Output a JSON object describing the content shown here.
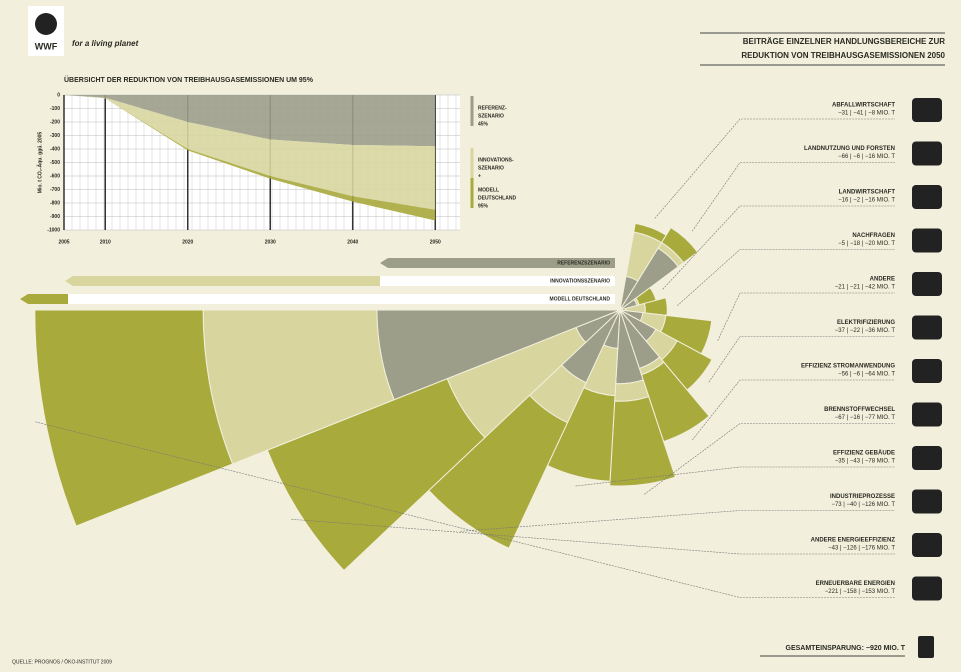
{
  "header": {
    "logo": "WWF",
    "tagline": "for a living planet",
    "title_lines": [
      "BEITRÄGE EINZELNER HANDLUNGSBEREICHE ZUR",
      "REDUKTION VON TREIBHAUSGASEMISSIONEN 2050"
    ]
  },
  "chart_data": [
    {
      "type": "area",
      "title": "ÜBERSICHT DER REDUKTION VON TREIBHAUSGASEMISSIONEN UM 95%",
      "ylabel": "Mio. t CO₂-Äqu. ggü. 2005",
      "x": [
        2005,
        2010,
        2020,
        2030,
        2040,
        2050
      ],
      "xlim": [
        2005,
        2053
      ],
      "xticks": [
        2005,
        2010,
        2020,
        2030,
        2040,
        2050
      ],
      "ylim": [
        -1000,
        0
      ],
      "yticks": [
        0,
        -100,
        -200,
        -300,
        -400,
        -500,
        -600,
        -700,
        -800,
        -900,
        -1000
      ],
      "stacked": true,
      "grid": true,
      "series": [
        {
          "name": "REFERENZ-SZENARIO",
          "label_lines": [
            "REFERENZ-",
            "SZENARIO",
            "45%"
          ],
          "color": "#9c9e8a",
          "values": [
            0,
            -20,
            -200,
            -330,
            -370,
            -380
          ]
        },
        {
          "name": "INNOVATIONS-SZENARIO",
          "label_lines": [
            "INNOVATIONS-",
            "SZENARIO",
            "+"
          ],
          "color": "#d8d69e",
          "values": [
            0,
            -5,
            -200,
            -270,
            -380,
            -470
          ]
        },
        {
          "name": "MODELL DEUTSCHLAND",
          "label_lines": [
            "MODELL",
            "DEUTSCHLAND",
            "95%"
          ],
          "color": "#a9aa3c",
          "values": [
            0,
            0,
            -10,
            -20,
            -40,
            -80
          ]
        }
      ]
    },
    {
      "type": "rose",
      "categories": [
        "ABFALLWIRTSCHAFT",
        "LANDNUTZUNG UND FORSTEN",
        "LANDWIRTSCHAFT",
        "NACHFRAGEN",
        "ANDERE",
        "ELEKTRIFIZIERUNG",
        "EFFIZIENZ STROMANWENDUNG",
        "BRENNSTOFFWECHSEL",
        "EFFIZIENZ GEBÄUDE",
        "INDUSTRIEPROZESSE",
        "ANDERE ENERGIEEFFIZIENZ",
        "ERNEUERBARE ENERGIEN"
      ],
      "value_labels": [
        "−31 | −41 | −8 MIO. T",
        "−66 | −6 | −16 MIO. T",
        "−16 | −2 | −16 MIO. T",
        "−5 | −18 | −20 MIO. T",
        "−21 | −21 | −42 MIO. T",
        "−37 | −22 | −36 MIO. T",
        "−56 | −6 | −64 MIO. T",
        "−67 | −16 | −77 MIO. T",
        "−35 | −43 | −78 MIO. T",
        "−73 | −40 | −126 MIO. T",
        "−43 | −126 | −176 MIO. T",
        "−221 | −158 | −153 MIO. T"
      ],
      "series": [
        {
          "name": "REFERENZSZENARIO",
          "color": "#9c9e8a",
          "values": [
            -31,
            -66,
            -16,
            -5,
            -21,
            -37,
            -56,
            -67,
            -35,
            -73,
            -43,
            -221
          ]
        },
        {
          "name": "INNOVATIONSSZENARIO",
          "color": "#d8d69e",
          "values": [
            -41,
            -6,
            -2,
            -18,
            -21,
            -22,
            -6,
            -16,
            -43,
            -40,
            -126,
            -158
          ]
        },
        {
          "name": "MODELL DEUTSCHLAND",
          "color": "#a9aa3c",
          "values": [
            -8,
            -16,
            -16,
            -20,
            -42,
            -36,
            -64,
            -77,
            -78,
            -126,
            -176,
            -153
          ]
        }
      ]
    }
  ],
  "total": "GESAMTEINSPARUNG: −920 MIO. T",
  "source": "QUELLE: PROGNOS / ÖKO-INSTITUT 2009"
}
